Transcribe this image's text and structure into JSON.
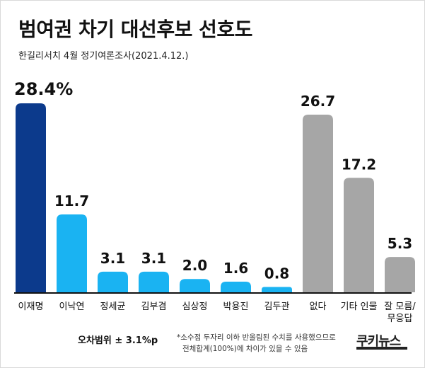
{
  "header": {
    "title": "범여권 차기 대선후보 선호도",
    "subtitle": "한길리서치 4월 정기여론조사(2021.4.12.)"
  },
  "footer": {
    "margin_of_error": "오차범위 ± 3.1%p",
    "note_line1": "*소수점 두자리 이하 반올림된 수치를 사용했으므로",
    "note_line2": "전체합계(100%)에 차이가 있을 수 있음",
    "brand": "쿠키뉴스"
  },
  "colors": {
    "highlight": "#0c3a8c",
    "candidate": "#1ab3f2",
    "other": "#a6a6a6",
    "baseline": "#111111"
  },
  "chart_data": {
    "type": "bar",
    "title": "범여권 차기 대선후보 선호도",
    "xlabel": "",
    "ylabel": "",
    "unit": "%",
    "ylim": [
      0,
      30
    ],
    "categories": [
      "이재명",
      "이낙연",
      "정세균",
      "김부겸",
      "심상정",
      "박용진",
      "김두관",
      "없다",
      "기타 인물",
      "잘 모름/ 무응답"
    ],
    "values": [
      28.4,
      11.7,
      3.1,
      3.1,
      2.0,
      1.6,
      0.8,
      26.7,
      17.2,
      5.3
    ],
    "value_labels": [
      "28.4%",
      "11.7",
      "3.1",
      "3.1",
      "2.0",
      "1.6",
      "0.8",
      "26.7",
      "17.2",
      "5.3"
    ],
    "bar_groups": [
      "highlight",
      "candidate",
      "candidate",
      "candidate",
      "candidate",
      "candidate",
      "candidate",
      "other",
      "other",
      "other"
    ]
  }
}
